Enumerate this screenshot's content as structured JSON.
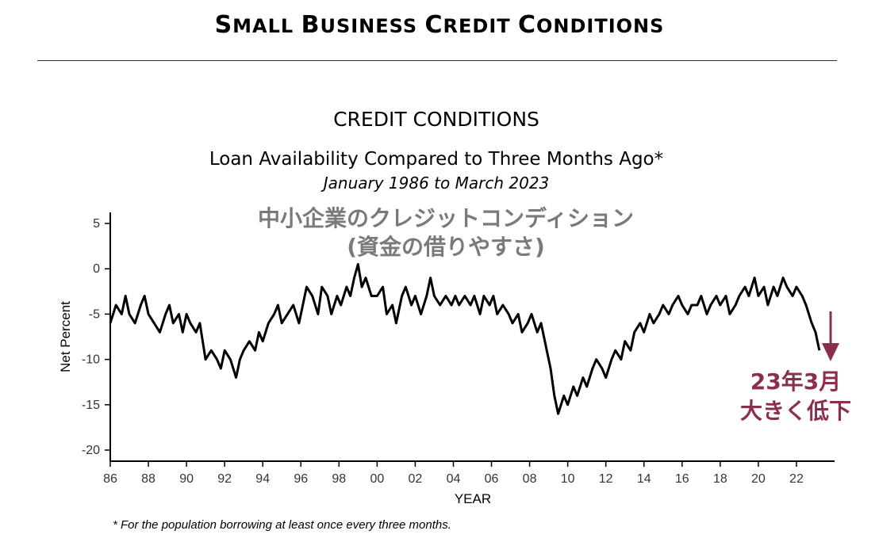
{
  "header": {
    "first": "S",
    "rest_a": "MALL ",
    "b_first": "B",
    "rest_b": "USINESS ",
    "c_first": "C",
    "rest_c": "REDIT ",
    "d_first": "C",
    "rest_d": "ONDITIONS"
  },
  "chart_data": {
    "type": "line",
    "title": "CREDIT CONDITIONS",
    "subtitle": "Loan Availability Compared to Three Months Ago*",
    "date_range": "January 1986 to March 2023",
    "overlay_title_line1": "中小企業のクレジットコンディション",
    "overlay_title_line2": "(資金の借りやすさ)",
    "xlabel": "YEAR",
    "ylabel": "Net Percent",
    "ylim": [
      -20,
      5
    ],
    "xlim": [
      1986,
      2024
    ],
    "yticks": [
      5,
      0,
      -5,
      -10,
      -15,
      -20
    ],
    "xticks": [
      "86",
      "88",
      "90",
      "92",
      "94",
      "96",
      "98",
      "00",
      "02",
      "04",
      "06",
      "08",
      "10",
      "12",
      "14",
      "16",
      "18",
      "20",
      "22"
    ],
    "grid": false,
    "series": [
      {
        "line_color": "#000000",
        "points": [
          [
            1986.0,
            -6
          ],
          [
            1986.3,
            -4
          ],
          [
            1986.6,
            -5
          ],
          [
            1986.8,
            -3
          ],
          [
            1987.0,
            -5
          ],
          [
            1987.3,
            -6
          ],
          [
            1987.6,
            -4
          ],
          [
            1987.8,
            -3
          ],
          [
            1988.0,
            -5
          ],
          [
            1988.3,
            -6
          ],
          [
            1988.6,
            -7
          ],
          [
            1988.9,
            -5
          ],
          [
            1989.1,
            -4
          ],
          [
            1989.3,
            -6
          ],
          [
            1989.6,
            -5
          ],
          [
            1989.8,
            -7
          ],
          [
            1990.0,
            -5
          ],
          [
            1990.2,
            -6
          ],
          [
            1990.5,
            -7
          ],
          [
            1990.7,
            -6
          ],
          [
            1991.0,
            -10
          ],
          [
            1991.3,
            -9
          ],
          [
            1991.6,
            -10
          ],
          [
            1991.8,
            -11
          ],
          [
            1992.0,
            -9
          ],
          [
            1992.3,
            -10
          ],
          [
            1992.6,
            -12
          ],
          [
            1992.8,
            -10
          ],
          [
            1993.0,
            -9
          ],
          [
            1993.3,
            -8
          ],
          [
            1993.6,
            -9
          ],
          [
            1993.8,
            -7
          ],
          [
            1994.0,
            -8
          ],
          [
            1994.3,
            -6
          ],
          [
            1994.6,
            -5
          ],
          [
            1994.8,
            -4
          ],
          [
            1995.0,
            -6
          ],
          [
            1995.3,
            -5
          ],
          [
            1995.6,
            -4
          ],
          [
            1995.9,
            -6
          ],
          [
            1996.1,
            -4
          ],
          [
            1996.3,
            -2
          ],
          [
            1996.6,
            -3
          ],
          [
            1996.9,
            -5
          ],
          [
            1997.1,
            -2
          ],
          [
            1997.4,
            -3
          ],
          [
            1997.6,
            -5
          ],
          [
            1997.9,
            -3
          ],
          [
            1998.1,
            -4
          ],
          [
            1998.4,
            -2
          ],
          [
            1998.6,
            -3
          ],
          [
            1998.8,
            -1
          ],
          [
            1999.0,
            0.5
          ],
          [
            1999.2,
            -2
          ],
          [
            1999.4,
            -1
          ],
          [
            1999.7,
            -3
          ],
          [
            2000.0,
            -3
          ],
          [
            2000.3,
            -2
          ],
          [
            2000.5,
            -5
          ],
          [
            2000.8,
            -4
          ],
          [
            2001.0,
            -6
          ],
          [
            2001.3,
            -3
          ],
          [
            2001.5,
            -2
          ],
          [
            2001.8,
            -4
          ],
          [
            2002.0,
            -3
          ],
          [
            2002.3,
            -5
          ],
          [
            2002.6,
            -3
          ],
          [
            2002.8,
            -1
          ],
          [
            2003.0,
            -3
          ],
          [
            2003.3,
            -4
          ],
          [
            2003.6,
            -3
          ],
          [
            2003.9,
            -4
          ],
          [
            2004.1,
            -3
          ],
          [
            2004.3,
            -4
          ],
          [
            2004.6,
            -3
          ],
          [
            2004.9,
            -4
          ],
          [
            2005.1,
            -3
          ],
          [
            2005.4,
            -5
          ],
          [
            2005.6,
            -3
          ],
          [
            2005.9,
            -4
          ],
          [
            2006.1,
            -3
          ],
          [
            2006.3,
            -5
          ],
          [
            2006.6,
            -4
          ],
          [
            2006.9,
            -5
          ],
          [
            2007.1,
            -6
          ],
          [
            2007.4,
            -5
          ],
          [
            2007.6,
            -7
          ],
          [
            2007.9,
            -6
          ],
          [
            2008.1,
            -5
          ],
          [
            2008.4,
            -7
          ],
          [
            2008.6,
            -6
          ],
          [
            2008.9,
            -9
          ],
          [
            2009.1,
            -11
          ],
          [
            2009.3,
            -14
          ],
          [
            2009.5,
            -16
          ],
          [
            2009.8,
            -14
          ],
          [
            2010.0,
            -15
          ],
          [
            2010.3,
            -13
          ],
          [
            2010.5,
            -14
          ],
          [
            2010.8,
            -12
          ],
          [
            2011.0,
            -13
          ],
          [
            2011.3,
            -11
          ],
          [
            2011.5,
            -10
          ],
          [
            2011.8,
            -11
          ],
          [
            2012.0,
            -12
          ],
          [
            2012.3,
            -10
          ],
          [
            2012.5,
            -9
          ],
          [
            2012.8,
            -10
          ],
          [
            2013.0,
            -8
          ],
          [
            2013.3,
            -9
          ],
          [
            2013.5,
            -7
          ],
          [
            2013.8,
            -6
          ],
          [
            2014.0,
            -7
          ],
          [
            2014.3,
            -5
          ],
          [
            2014.5,
            -6
          ],
          [
            2014.8,
            -5
          ],
          [
            2015.0,
            -4
          ],
          [
            2015.3,
            -5
          ],
          [
            2015.5,
            -4
          ],
          [
            2015.8,
            -3
          ],
          [
            2016.0,
            -4
          ],
          [
            2016.3,
            -5
          ],
          [
            2016.5,
            -4
          ],
          [
            2016.8,
            -4
          ],
          [
            2017.0,
            -3
          ],
          [
            2017.3,
            -5
          ],
          [
            2017.5,
            -4
          ],
          [
            2017.8,
            -3
          ],
          [
            2018.0,
            -4
          ],
          [
            2018.3,
            -3
          ],
          [
            2018.5,
            -5
          ],
          [
            2018.8,
            -4
          ],
          [
            2019.0,
            -3
          ],
          [
            2019.3,
            -2
          ],
          [
            2019.5,
            -3
          ],
          [
            2019.8,
            -1
          ],
          [
            2020.0,
            -3
          ],
          [
            2020.3,
            -2
          ],
          [
            2020.5,
            -4
          ],
          [
            2020.8,
            -2
          ],
          [
            2021.0,
            -3
          ],
          [
            2021.3,
            -1
          ],
          [
            2021.5,
            -2
          ],
          [
            2021.8,
            -3
          ],
          [
            2022.0,
            -2
          ],
          [
            2022.3,
            -3
          ],
          [
            2022.5,
            -4
          ],
          [
            2022.8,
            -6
          ],
          [
            2023.0,
            -7
          ],
          [
            2023.2,
            -9
          ]
        ]
      }
    ],
    "annotation": {
      "line1": "23年3月",
      "line2": "大きく低下",
      "color": "#8b2e4f"
    }
  },
  "footnote": "* For the population borrowing at least once every three months."
}
